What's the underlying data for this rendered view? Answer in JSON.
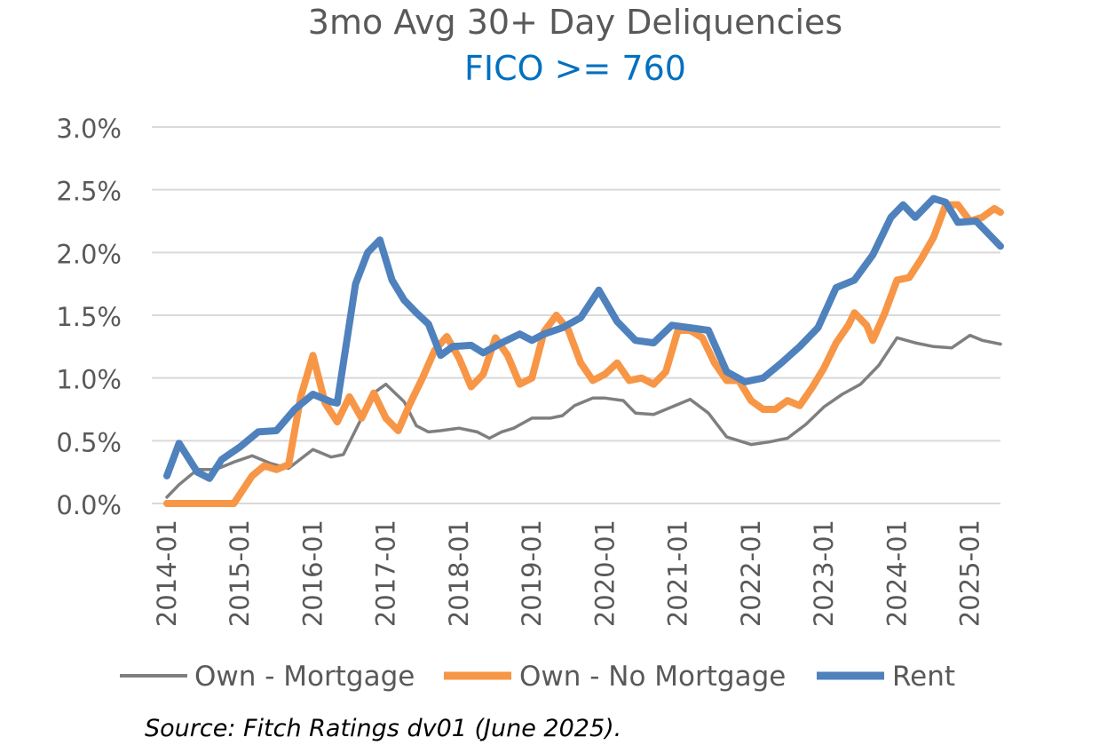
{
  "colors": {
    "title": "#595959",
    "subtitle": "#0070C0",
    "grid": "#D9D9D9",
    "axis_text": "#595959",
    "own_mortgage": "#7F7F7F",
    "own_no_mortgage": "#F79646",
    "rent": "#4F81BD"
  },
  "source": "Source: Fitch Ratings dv01 (June 2025).",
  "chart_data": {
    "type": "line",
    "title": "3mo Avg 30+ Day Deliquencies",
    "subtitle": "FICO >= 760",
    "xlabel": "",
    "ylabel": "",
    "ylim": [
      0,
      0.03
    ],
    "yticks": [
      0,
      0.005,
      0.01,
      0.015,
      0.02,
      0.025,
      0.03
    ],
    "ytick_labels": [
      "0.0%",
      "0.5%",
      "1.0%",
      "1.5%",
      "2.0%",
      "2.5%",
      "3.0%"
    ],
    "xlim": [
      "2014-01",
      "2025-06"
    ],
    "xticks": [
      "2014-01",
      "2015-01",
      "2016-01",
      "2017-01",
      "2018-01",
      "2019-01",
      "2020-01",
      "2021-01",
      "2022-01",
      "2023-01",
      "2024-01",
      "2025-01"
    ],
    "grid": true,
    "legend_position": "bottom",
    "series": [
      {
        "name": "Own - Mortgage",
        "color": "#7F7F7F",
        "points": [
          [
            "2014-01",
            0.0005
          ],
          [
            "2014-03",
            0.0015
          ],
          [
            "2014-06",
            0.0027
          ],
          [
            "2014-09",
            0.0027
          ],
          [
            "2014-12",
            0.0033
          ],
          [
            "2015-03",
            0.0038
          ],
          [
            "2015-06",
            0.0032
          ],
          [
            "2015-09",
            0.0028
          ],
          [
            "2016-01",
            0.0043
          ],
          [
            "2016-04",
            0.0037
          ],
          [
            "2016-06",
            0.0039
          ],
          [
            "2016-09",
            0.0068
          ],
          [
            "2016-11",
            0.0088
          ],
          [
            "2017-01",
            0.0095
          ],
          [
            "2017-04",
            0.0081
          ],
          [
            "2017-06",
            0.0062
          ],
          [
            "2017-08",
            0.0057
          ],
          [
            "2017-10",
            0.0058
          ],
          [
            "2018-01",
            0.006
          ],
          [
            "2018-04",
            0.0057
          ],
          [
            "2018-06",
            0.0052
          ],
          [
            "2018-08",
            0.0057
          ],
          [
            "2018-10",
            0.006
          ],
          [
            "2019-01",
            0.0068
          ],
          [
            "2019-04",
            0.0068
          ],
          [
            "2019-06",
            0.007
          ],
          [
            "2019-08",
            0.0078
          ],
          [
            "2019-11",
            0.0084
          ],
          [
            "2020-01",
            0.0084
          ],
          [
            "2020-04",
            0.0082
          ],
          [
            "2020-06",
            0.0072
          ],
          [
            "2020-09",
            0.0071
          ],
          [
            "2020-12",
            0.0077
          ],
          [
            "2021-03",
            0.0083
          ],
          [
            "2021-06",
            0.0072
          ],
          [
            "2021-09",
            0.0053
          ],
          [
            "2022-01",
            0.0047
          ],
          [
            "2022-04",
            0.0049
          ],
          [
            "2022-07",
            0.0052
          ],
          [
            "2022-10",
            0.0063
          ],
          [
            "2023-01",
            0.0077
          ],
          [
            "2023-04",
            0.0087
          ],
          [
            "2023-07",
            0.0095
          ],
          [
            "2023-10",
            0.011
          ],
          [
            "2024-01",
            0.0132
          ],
          [
            "2024-04",
            0.0128
          ],
          [
            "2024-07",
            0.0125
          ],
          [
            "2024-10",
            0.0124
          ],
          [
            "2025-01",
            0.0134
          ],
          [
            "2025-03",
            0.013
          ],
          [
            "2025-06",
            0.0127
          ]
        ]
      },
      {
        "name": "Own - No Mortgage",
        "color": "#F79646",
        "points": [
          [
            "2014-01",
            0.0
          ],
          [
            "2014-06",
            0.0
          ],
          [
            "2014-12",
            0.0
          ],
          [
            "2015-03",
            0.0022
          ],
          [
            "2015-05",
            0.003
          ],
          [
            "2015-07",
            0.0027
          ],
          [
            "2015-09",
            0.0031
          ],
          [
            "2015-11",
            0.0085
          ],
          [
            "2016-01",
            0.0118
          ],
          [
            "2016-03",
            0.008
          ],
          [
            "2016-05",
            0.0065
          ],
          [
            "2016-07",
            0.0085
          ],
          [
            "2016-09",
            0.0068
          ],
          [
            "2016-11",
            0.0088
          ],
          [
            "2017-01",
            0.0068
          ],
          [
            "2017-03",
            0.0058
          ],
          [
            "2017-05",
            0.008
          ],
          [
            "2017-07",
            0.01
          ],
          [
            "2017-09",
            0.0122
          ],
          [
            "2017-11",
            0.0133
          ],
          [
            "2018-01",
            0.0116
          ],
          [
            "2018-03",
            0.0093
          ],
          [
            "2018-05",
            0.0103
          ],
          [
            "2018-07",
            0.0132
          ],
          [
            "2018-09",
            0.0118
          ],
          [
            "2018-11",
            0.0095
          ],
          [
            "2019-01",
            0.01
          ],
          [
            "2019-03",
            0.0137
          ],
          [
            "2019-05",
            0.015
          ],
          [
            "2019-07",
            0.0138
          ],
          [
            "2019-09",
            0.0112
          ],
          [
            "2019-11",
            0.0098
          ],
          [
            "2020-01",
            0.0103
          ],
          [
            "2020-03",
            0.0112
          ],
          [
            "2020-05",
            0.0098
          ],
          [
            "2020-07",
            0.01
          ],
          [
            "2020-09",
            0.0095
          ],
          [
            "2020-11",
            0.0105
          ],
          [
            "2021-01",
            0.0138
          ],
          [
            "2021-03",
            0.0138
          ],
          [
            "2021-05",
            0.0132
          ],
          [
            "2021-07",
            0.0112
          ],
          [
            "2021-09",
            0.0098
          ],
          [
            "2021-11",
            0.0098
          ],
          [
            "2022-01",
            0.0082
          ],
          [
            "2022-03",
            0.0075
          ],
          [
            "2022-05",
            0.0075
          ],
          [
            "2022-07",
            0.0082
          ],
          [
            "2022-09",
            0.0078
          ],
          [
            "2022-11",
            0.0092
          ],
          [
            "2023-01",
            0.0108
          ],
          [
            "2023-03",
            0.0128
          ],
          [
            "2023-05",
            0.0142
          ],
          [
            "2023-06",
            0.0152
          ],
          [
            "2023-08",
            0.0142
          ],
          [
            "2023-09",
            0.013
          ],
          [
            "2023-11",
            0.0152
          ],
          [
            "2024-01",
            0.0178
          ],
          [
            "2024-03",
            0.018
          ],
          [
            "2024-05",
            0.0195
          ],
          [
            "2024-07",
            0.0212
          ],
          [
            "2024-09",
            0.0238
          ],
          [
            "2024-11",
            0.0238
          ],
          [
            "2025-01",
            0.0225
          ],
          [
            "2025-03",
            0.0228
          ],
          [
            "2025-05",
            0.0235
          ],
          [
            "2025-06",
            0.0232
          ]
        ]
      },
      {
        "name": "Rent",
        "color": "#4F81BD",
        "points": [
          [
            "2014-01",
            0.0022
          ],
          [
            "2014-03",
            0.0048
          ],
          [
            "2014-06",
            0.0025
          ],
          [
            "2014-08",
            0.002
          ],
          [
            "2014-10",
            0.0035
          ],
          [
            "2015-01",
            0.0045
          ],
          [
            "2015-04",
            0.0057
          ],
          [
            "2015-07",
            0.0058
          ],
          [
            "2015-10",
            0.0075
          ],
          [
            "2016-01",
            0.0087
          ],
          [
            "2016-04",
            0.0081
          ],
          [
            "2016-05",
            0.008
          ],
          [
            "2016-08",
            0.0175
          ],
          [
            "2016-10",
            0.02
          ],
          [
            "2016-12",
            0.021
          ],
          [
            "2017-02",
            0.0178
          ],
          [
            "2017-04",
            0.0162
          ],
          [
            "2017-06",
            0.0152
          ],
          [
            "2017-08",
            0.0143
          ],
          [
            "2017-10",
            0.0118
          ],
          [
            "2017-12",
            0.0125
          ],
          [
            "2018-03",
            0.0126
          ],
          [
            "2018-05",
            0.012
          ],
          [
            "2018-08",
            0.0128
          ],
          [
            "2018-11",
            0.0135
          ],
          [
            "2019-01",
            0.013
          ],
          [
            "2019-03",
            0.0135
          ],
          [
            "2019-06",
            0.014
          ],
          [
            "2019-09",
            0.0148
          ],
          [
            "2019-12",
            0.017
          ],
          [
            "2020-03",
            0.0145
          ],
          [
            "2020-06",
            0.013
          ],
          [
            "2020-09",
            0.0128
          ],
          [
            "2020-12",
            0.0142
          ],
          [
            "2021-03",
            0.014
          ],
          [
            "2021-06",
            0.0138
          ],
          [
            "2021-09",
            0.0105
          ],
          [
            "2021-12",
            0.0097
          ],
          [
            "2022-03",
            0.01
          ],
          [
            "2022-06",
            0.0112
          ],
          [
            "2022-09",
            0.0125
          ],
          [
            "2022-12",
            0.014
          ],
          [
            "2023-03",
            0.0172
          ],
          [
            "2023-06",
            0.0178
          ],
          [
            "2023-09",
            0.0198
          ],
          [
            "2023-12",
            0.0228
          ],
          [
            "2024-02",
            0.0238
          ],
          [
            "2024-04",
            0.0228
          ],
          [
            "2024-07",
            0.0243
          ],
          [
            "2024-09",
            0.024
          ],
          [
            "2024-11",
            0.0224
          ],
          [
            "2025-02",
            0.0225
          ],
          [
            "2025-04",
            0.0215
          ],
          [
            "2025-06",
            0.0205
          ]
        ]
      }
    ]
  }
}
